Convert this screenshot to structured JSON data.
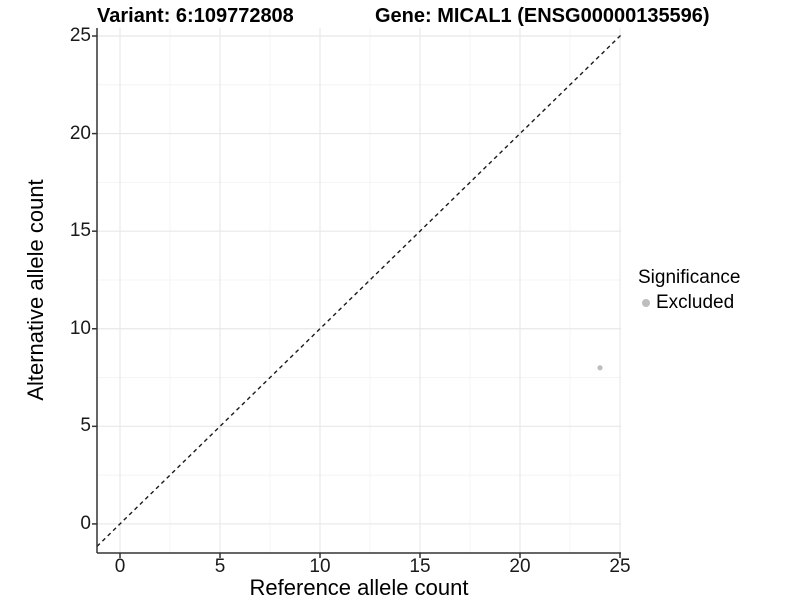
{
  "header": {
    "variant_title": "Variant: 6:109772808",
    "gene_title": "Gene: MICAL1 (ENSG00000135596)"
  },
  "chart_data": {
    "type": "scatter",
    "title": "Variant: 6:109772808  Gene: MICAL1 (ENSG00000135596)",
    "xlabel": "Reference allele count",
    "ylabel": "Alternative allele count",
    "xlim": [
      -1.15,
      25.05
    ],
    "ylim": [
      -1.49,
      25.41
    ],
    "xticks": [
      0,
      5,
      10,
      15,
      20,
      25
    ],
    "yticks": [
      0,
      5,
      10,
      15,
      20,
      25
    ],
    "minor_xticks": [
      2.5,
      7.5,
      12.5,
      17.5,
      22.5
    ],
    "minor_yticks": [
      2.5,
      7.5,
      12.5,
      17.5,
      22.5
    ],
    "grid": "major+minor",
    "identity_line": {
      "style": "dashed",
      "slope": 1,
      "intercept": 0,
      "color": "#1a1a1a"
    },
    "series": [
      {
        "name": "Excluded",
        "color": "#bebebe",
        "points": [
          [
            24,
            8
          ]
        ]
      }
    ],
    "legend": {
      "title": "Significance",
      "position": "right",
      "items": [
        {
          "label": "Excluded",
          "color": "#bebebe"
        }
      ]
    }
  },
  "styles": {
    "grid_major_color": "#e8e8e8",
    "grid_minor_color": "#f4f4f4",
    "axis_line_color": "#333333",
    "tick_color": "#333333",
    "text_color": "#000000"
  }
}
